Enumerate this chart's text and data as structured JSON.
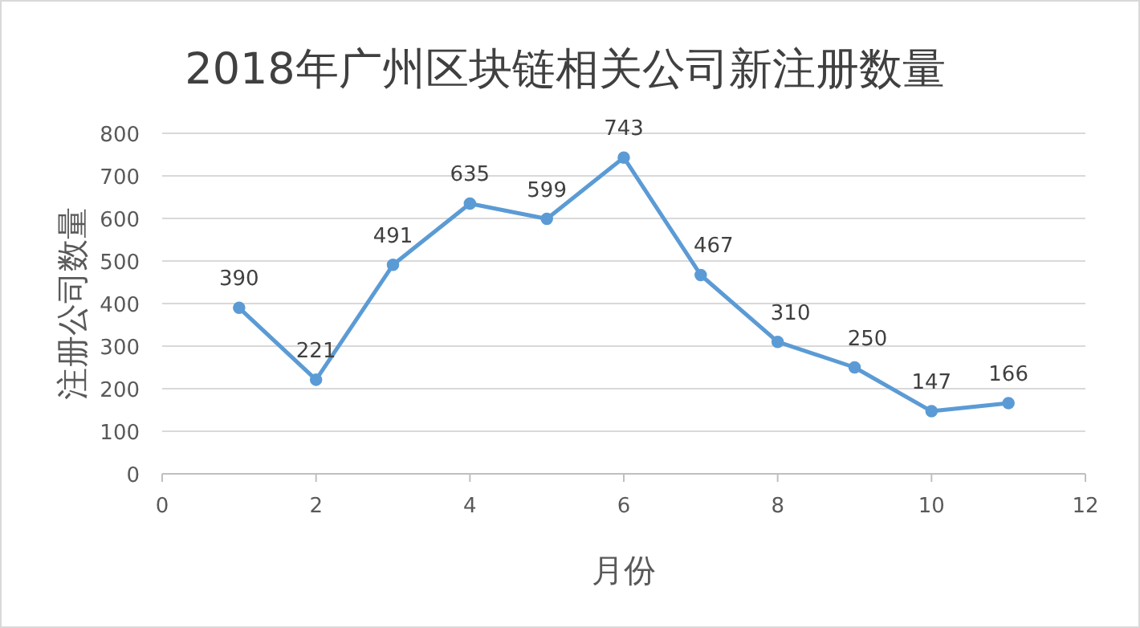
{
  "chart_data": {
    "type": "line",
    "title": "2018年广州区块链相关公司新注册数量",
    "xlabel": "月份",
    "ylabel": "注册公司数量",
    "x": [
      1,
      2,
      3,
      4,
      5,
      6,
      7,
      8,
      9,
      10,
      11
    ],
    "series": [
      {
        "color": "#5b9bd5",
        "values": [
          390,
          221,
          491,
          635,
          599,
          743,
          467,
          310,
          250,
          147,
          166
        ]
      }
    ],
    "xlim": [
      0,
      12
    ],
    "xticks": [
      0,
      2,
      4,
      6,
      8,
      10,
      12
    ],
    "ylim": [
      0,
      800
    ],
    "yticks": [
      0,
      100,
      200,
      300,
      400,
      500,
      600,
      700,
      800
    ],
    "grid": "y",
    "marker": "circle",
    "data_labels": true
  }
}
